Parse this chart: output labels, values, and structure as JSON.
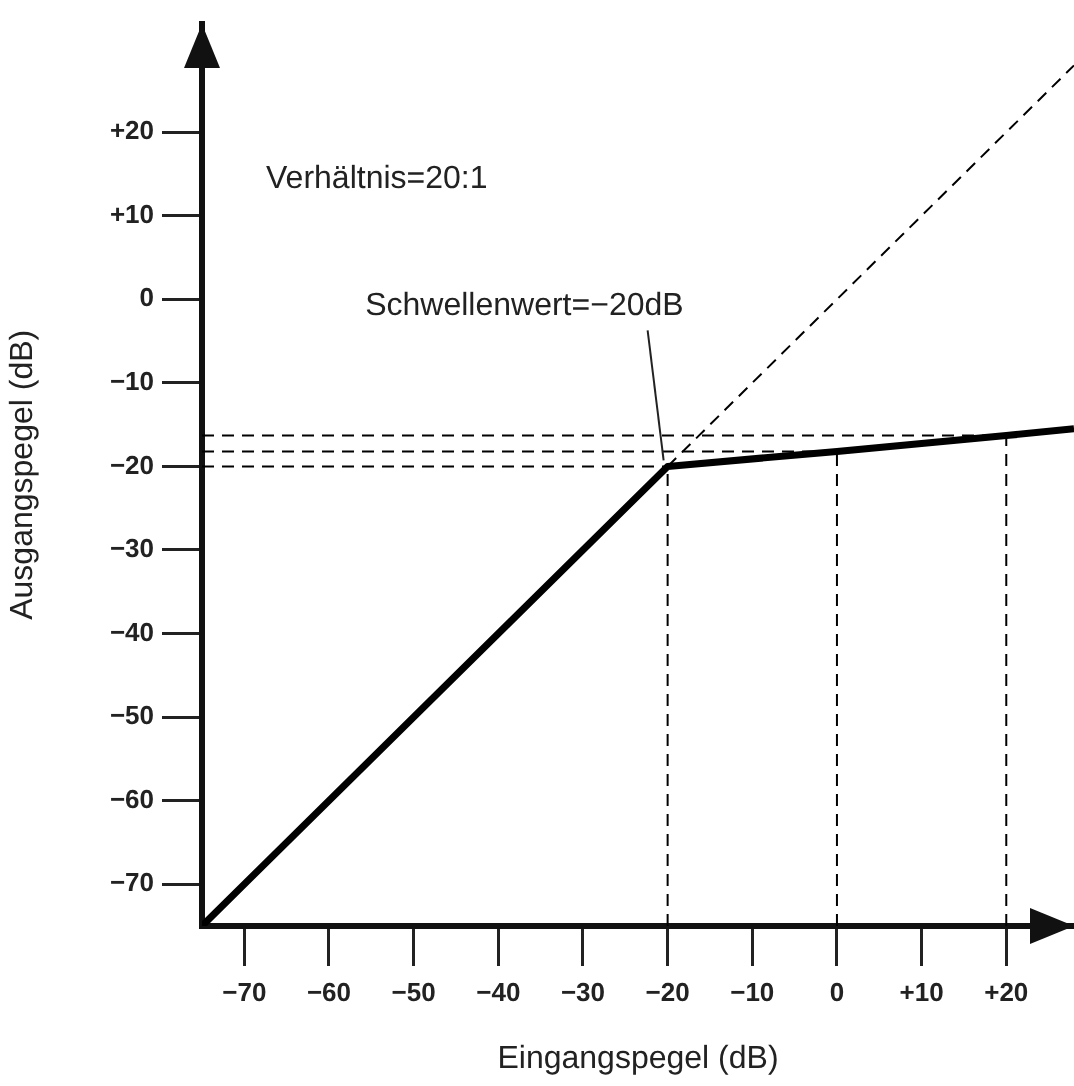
{
  "chart_data": {
    "type": "line",
    "xlabel": "Eingangspegel (dB)",
    "ylabel": "Ausgangspegel (dB)",
    "xlim": [
      -75,
      28
    ],
    "ylim": [
      -75,
      33
    ],
    "xticks": [
      {
        "value": -70,
        "label": "−70"
      },
      {
        "value": -60,
        "label": "−60"
      },
      {
        "value": -50,
        "label": "−50"
      },
      {
        "value": -40,
        "label": "−40"
      },
      {
        "value": -30,
        "label": "−30"
      },
      {
        "value": -20,
        "label": "−20"
      },
      {
        "value": -10,
        "label": "−10"
      },
      0,
      {
        "value": 10,
        "label": "+10"
      },
      {
        "value": 20,
        "label": "+20"
      }
    ],
    "yticks": [
      {
        "value": -70,
        "label": "−70"
      },
      {
        "value": -60,
        "label": "−60"
      },
      {
        "value": -50,
        "label": "−50"
      },
      {
        "value": -40,
        "label": "−40"
      },
      {
        "value": -30,
        "label": "−30"
      },
      {
        "value": -20,
        "label": "−20"
      },
      {
        "value": -10,
        "label": "−10"
      },
      0,
      {
        "value": 10,
        "label": "+10"
      },
      {
        "value": 20,
        "label": "+20"
      }
    ],
    "grid": false,
    "legend": false,
    "marker": "none",
    "series": [
      {
        "color": "#000000",
        "x": [
          -75,
          -20,
          0,
          20,
          28
        ],
        "values": [
          -75,
          -20,
          -18.2,
          -16.3,
          -15.5
        ]
      },
      {
        "color": "#000000",
        "line_style": "dashed",
        "x": [
          -20,
          28
        ],
        "values": [
          -20,
          28
        ]
      },
      {
        "color": "#000000",
        "line_style": "dashed",
        "x": [
          -20,
          -20
        ],
        "values": [
          -75,
          -20
        ]
      },
      {
        "color": "#000000",
        "line_style": "dashed",
        "x": [
          0,
          0
        ],
        "values": [
          -75,
          -18.2
        ]
      },
      {
        "color": "#000000",
        "line_style": "dashed",
        "x": [
          20,
          20
        ],
        "values": [
          -75,
          -16.3
        ]
      },
      {
        "color": "#000000",
        "line_style": "dashed",
        "x": [
          -75,
          -20
        ],
        "values": [
          -20,
          -20
        ]
      },
      {
        "color": "#000000",
        "line_style": "dashed",
        "x": [
          -75,
          0
        ],
        "values": [
          -18.2,
          -18.2
        ]
      },
      {
        "color": "#000000",
        "line_style": "dashed",
        "x": [
          -75,
          20
        ],
        "values": [
          -16.3,
          -16.3
        ]
      }
    ],
    "annotations": [
      "Verhältnis=20:1",
      {
        "text": "Schwellenwert=−20dB",
        "x": -20,
        "y": -20
      }
    ]
  }
}
